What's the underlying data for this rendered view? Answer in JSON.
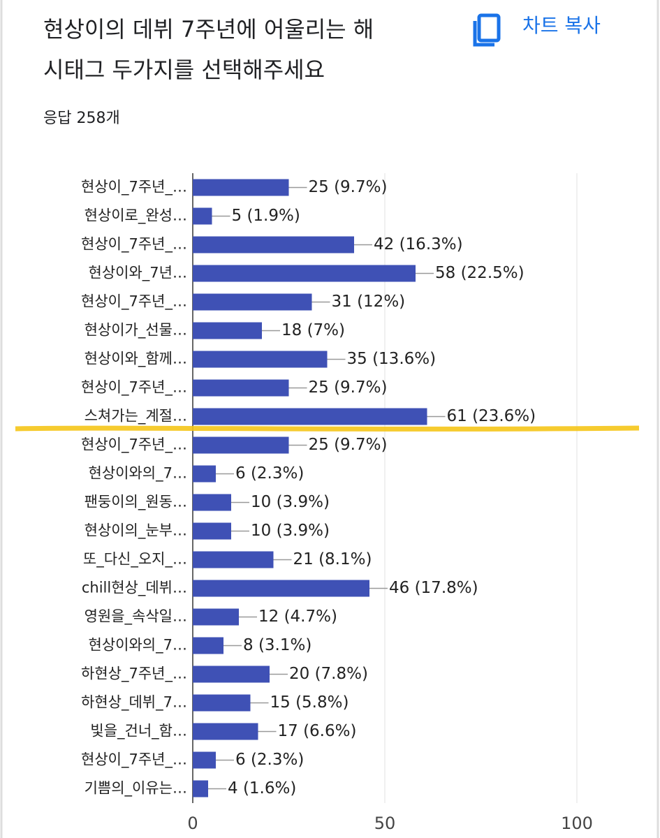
{
  "chart_data": {
    "type": "barh",
    "title": [
      "현상이의 데뷔 7주년에 어울리는 해",
      "시태그 두가지를 선택해주세요"
    ],
    "subtitle": "응답 258개",
    "copy_button": "차트 복사",
    "categories": [
      "현상이_7주년_…",
      "현상이로_완성…",
      "현상이_7주년_…",
      "현상이와_7년…",
      "현상이_7주년_…",
      "현상이가_선물…",
      "현상이와_함께…",
      "현상이_7주년_…",
      "스쳐가는_계절…",
      "현상이_7주년_…",
      "현상이와의_7…",
      "팬둥이의_원동…",
      "현상이의_눈부…",
      "또_다신_오지_…",
      "chill현상_데뷔…",
      "영원을_속삭일…",
      "현상이와의_7…",
      "하현상_7주년_…",
      "하현상_데뷔_7…",
      "빛을_건너_함…",
      "현상이_7주년_…",
      "기쁨의_이유는…"
    ],
    "values": [
      25,
      5,
      42,
      58,
      31,
      18,
      35,
      25,
      61,
      25,
      6,
      10,
      10,
      21,
      46,
      12,
      8,
      20,
      15,
      17,
      6,
      4
    ],
    "value_labels": [
      "25 (9.7%)",
      "5 (1.9%)",
      "42 (16.3%)",
      "58 (22.5%)",
      "31 (12%)",
      "18 (7%)",
      "35 (13.6%)",
      "25 (9.7%)",
      "61 (23.6%)",
      "25 (9.7%)",
      "6 (2.3%)",
      "10 (3.9%)",
      "10 (3.9%)",
      "21 (8.1%)",
      "46 (17.8%)",
      "12 (4.7%)",
      "8 (3.1%)",
      "20 (7.8%)",
      "15 (5.8%)",
      "17 (6.6%)",
      "6 (2.3%)",
      "4 (1.6%)"
    ],
    "color": "#3f51b5",
    "xlim": [
      0,
      100
    ],
    "xticks": [
      0,
      50,
      100
    ],
    "grid": true
  }
}
